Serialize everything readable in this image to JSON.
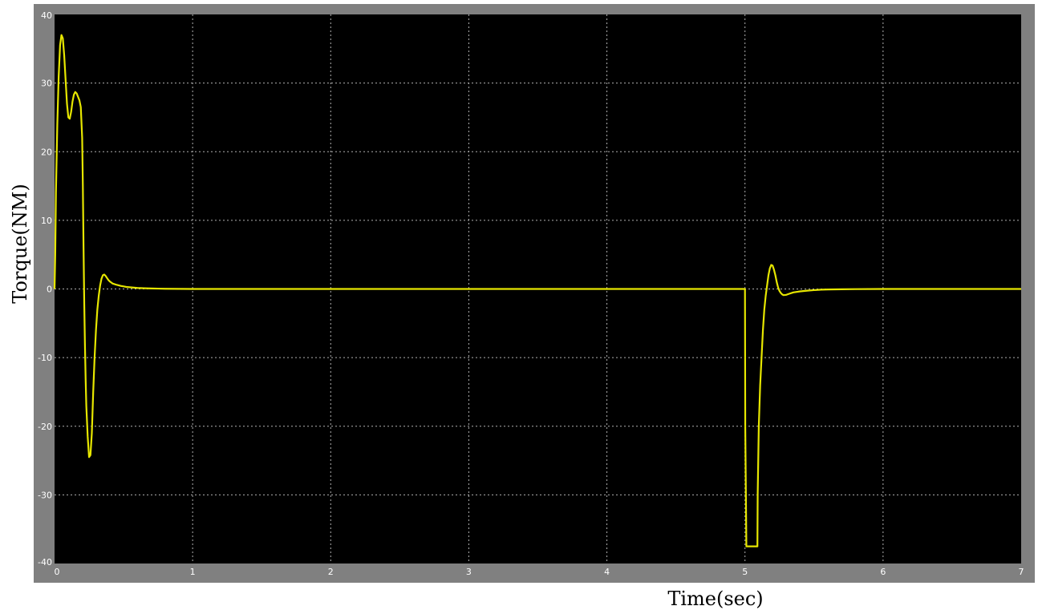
{
  "chart_data": {
    "type": "line",
    "title": "",
    "xlabel": "Time(sec)",
    "ylabel": "Torque(NM)",
    "xlim": [
      0,
      7
    ],
    "ylim": [
      -40,
      40
    ],
    "xticks": [
      0,
      1,
      2,
      3,
      4,
      5,
      6,
      7
    ],
    "yticks": [
      40,
      30,
      20,
      10,
      0,
      -10,
      -20,
      -30,
      -40
    ],
    "grid": true,
    "colors": {
      "background": "#000000",
      "frame": "#808080",
      "grid": "#b0b0b0",
      "line": "#e6e600"
    },
    "series": [
      {
        "x": [
          0,
          0.005,
          0.01,
          0.02,
          0.03,
          0.04,
          0.05,
          0.06,
          0.07,
          0.08,
          0.09,
          0.1,
          0.11,
          0.12,
          0.13,
          0.14,
          0.15,
          0.16,
          0.17,
          0.18,
          0.19,
          0.2,
          0.205,
          0.21,
          0.215,
          0.22,
          0.225,
          0.23,
          0.24,
          0.25,
          0.26,
          0.27,
          0.28,
          0.29,
          0.3,
          0.31,
          0.32,
          0.33,
          0.34,
          0.35,
          0.36,
          0.37,
          0.38,
          0.39,
          0.4,
          0.42,
          0.45,
          0.48,
          0.52,
          0.56,
          0.6,
          0.65,
          0.7,
          0.75,
          0.8,
          0.9,
          1.0,
          2.0,
          3.0,
          4.0,
          4.99,
          5.0,
          5.002,
          5.01,
          5.02,
          5.05,
          5.08,
          5.09,
          5.092,
          5.1,
          5.11,
          5.12,
          5.13,
          5.14,
          5.15,
          5.16,
          5.17,
          5.18,
          5.19,
          5.2,
          5.21,
          5.22,
          5.23,
          5.24,
          5.25,
          5.26,
          5.27,
          5.28,
          5.3,
          5.32,
          5.35,
          5.4,
          5.45,
          5.5,
          5.55,
          5.6,
          5.7,
          5.8,
          6.0,
          6.5,
          7.0
        ],
        "values": [
          0,
          5,
          14,
          24,
          31,
          35.5,
          37,
          36.5,
          34,
          30.5,
          27,
          25,
          24.8,
          25.8,
          27.3,
          28.3,
          28.7,
          28.5,
          28,
          27.5,
          26.5,
          22,
          15,
          6,
          -2,
          -8,
          -13,
          -17,
          -21.5,
          -24.5,
          -24.2,
          -21,
          -15,
          -10,
          -6,
          -3,
          -1,
          0.5,
          1.5,
          2,
          2.1,
          1.9,
          1.6,
          1.3,
          1.1,
          0.8,
          0.6,
          0.45,
          0.3,
          0.22,
          0.15,
          0.1,
          0.07,
          0.05,
          0.03,
          0.01,
          0,
          0,
          0,
          0,
          0,
          0,
          -20,
          -37.5,
          -37.5,
          -37.5,
          -37.5,
          -37.5,
          -30,
          -20,
          -14,
          -10,
          -6,
          -3,
          -1,
          0.5,
          2,
          3,
          3.5,
          3.4,
          2.8,
          2,
          1,
          0.2,
          -0.3,
          -0.6,
          -0.8,
          -0.9,
          -0.85,
          -0.7,
          -0.5,
          -0.35,
          -0.25,
          -0.17,
          -0.1,
          -0.07,
          -0.04,
          -0.02,
          0,
          0,
          0
        ]
      }
    ]
  }
}
